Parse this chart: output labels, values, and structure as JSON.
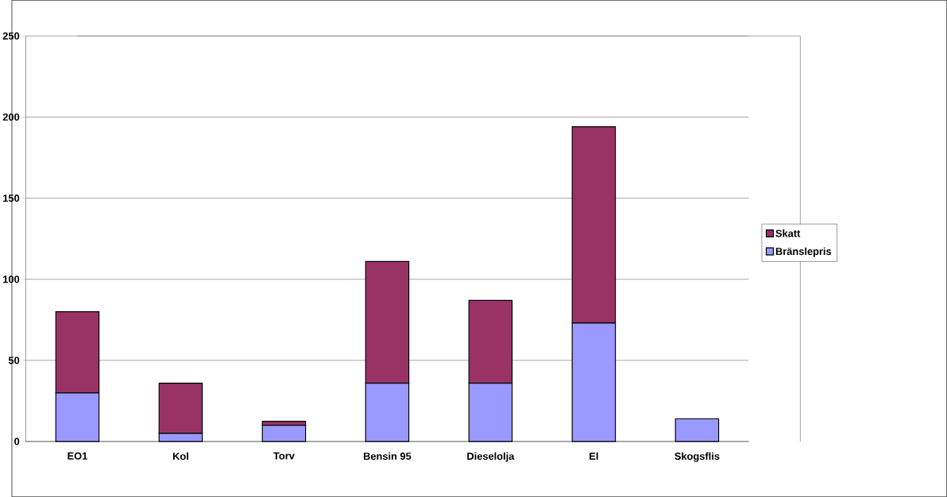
{
  "chart_data": {
    "type": "bar",
    "stacked": true,
    "categories": [
      "EO1",
      "Kol",
      "Torv",
      "Bensin 95",
      "Dieselolja",
      "El",
      "Skogsflis"
    ],
    "series": [
      {
        "name": "Bränslepris",
        "color": "#9999ff",
        "values": [
          30,
          5,
          10,
          36,
          36,
          73,
          14
        ]
      },
      {
        "name": "Skatt",
        "color": "#993366",
        "values": [
          50,
          31,
          2.5,
          75,
          51,
          121,
          0
        ]
      }
    ],
    "ylim": [
      0,
      250
    ],
    "yticks": [
      0,
      50,
      100,
      150,
      200,
      250
    ],
    "grid": "y",
    "legend": "right"
  }
}
